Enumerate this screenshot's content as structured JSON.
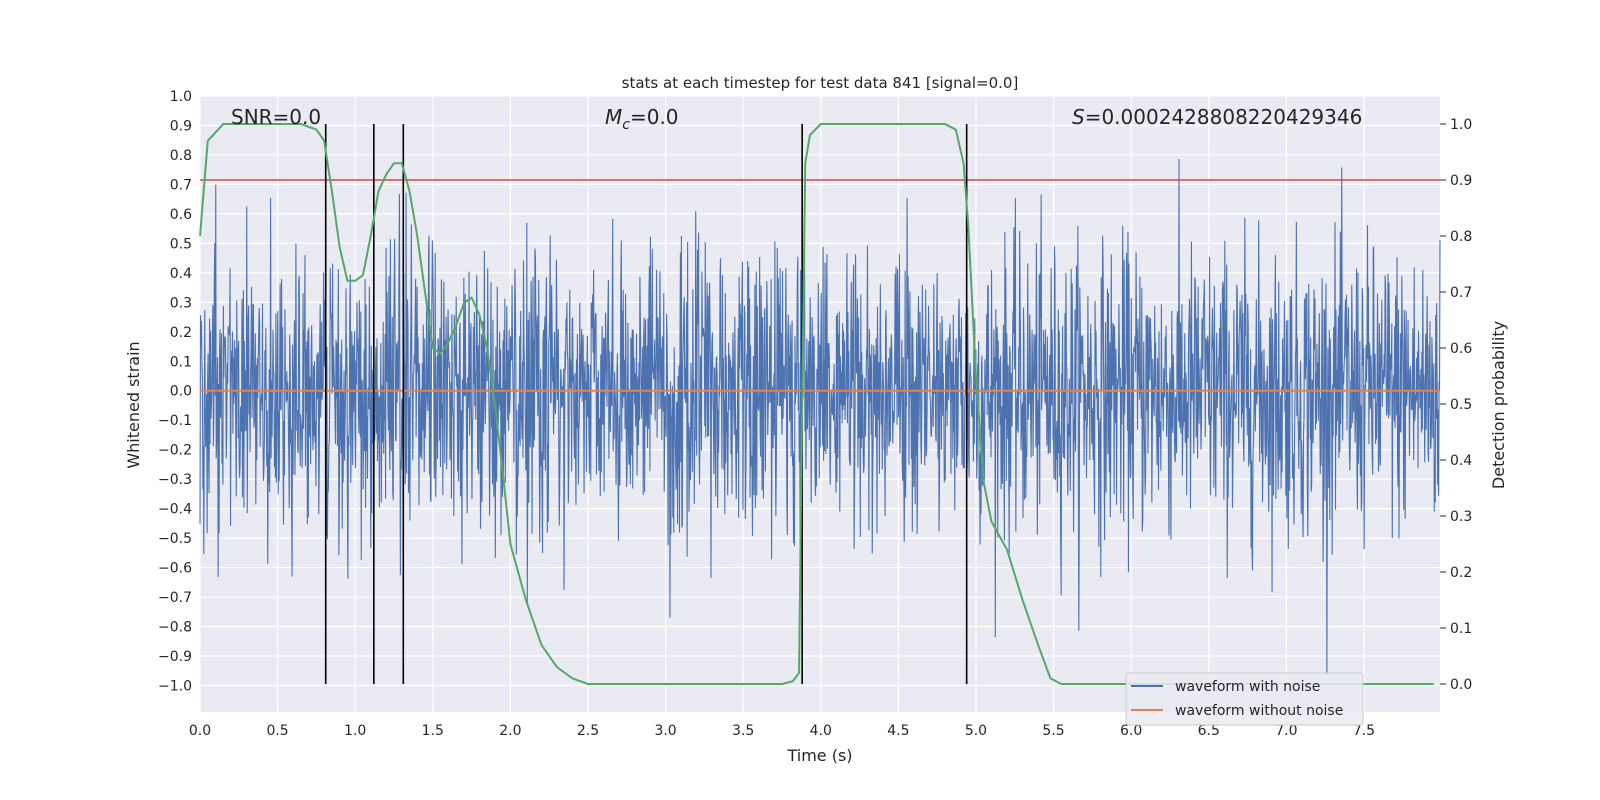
{
  "chart_data": {
    "type": "line",
    "title": "stats at each timestep for test data 841 [signal=0.0]",
    "xlabel": "Time (s)",
    "ylabel": "Whitened strain",
    "y2label": "Detection probability",
    "xlim": [
      0.0,
      7.99
    ],
    "ylim": [
      -1.09,
      1.0
    ],
    "y2lim": [
      -0.05,
      1.05
    ],
    "xticks": [
      "0.0",
      "0.5",
      "1.0",
      "1.5",
      "2.0",
      "2.5",
      "3.0",
      "3.5",
      "4.0",
      "4.5",
      "5.0",
      "5.5",
      "6.0",
      "6.5",
      "7.0",
      "7.5"
    ],
    "yticks": [
      "1.0",
      "0.9",
      "0.8",
      "0.7",
      "0.6",
      "0.5",
      "0.4",
      "0.3",
      "0.2",
      "0.1",
      "0.0",
      "−0.1",
      "−0.2",
      "−0.3",
      "−0.4",
      "−0.5",
      "−0.6",
      "−0.7",
      "−0.8",
      "−0.9",
      "−1.0"
    ],
    "y2ticks": [
      "1.0",
      "0.9",
      "0.8",
      "0.7",
      "0.6",
      "0.5",
      "0.4",
      "0.3",
      "0.2",
      "0.1",
      "0.0"
    ],
    "grid": true,
    "annotations": {
      "snr": "SNR=0.0",
      "mc": "M",
      "mc_sub": "c",
      "mc_val": "=0.0",
      "s_sym": "S",
      "s_val": "=0.0002428808220429346"
    },
    "legend": {
      "placement": "lower-right",
      "entries": [
        {
          "label": "waveform with noise",
          "color": "#4c72b0"
        },
        {
          "label": "waveform without noise",
          "color": "#dd8452"
        }
      ]
    },
    "series": [
      {
        "name": "waveform with noise",
        "color": "#4c72b0",
        "type": "noise",
        "t_start": 0.0,
        "t_end": 7.99,
        "std": 0.24,
        "max": 0.91,
        "min": -1.0
      },
      {
        "name": "waveform without noise",
        "color": "#dd8452",
        "type": "constant",
        "value": 0.0
      },
      {
        "color": "#55a868",
        "axis": "right",
        "x": [
          0.0,
          0.05,
          0.15,
          0.3,
          0.5,
          0.65,
          0.75,
          0.8,
          0.85,
          0.9,
          0.95,
          1.0,
          1.05,
          1.1,
          1.15,
          1.2,
          1.25,
          1.3,
          1.35,
          1.4,
          1.45,
          1.5,
          1.55,
          1.6,
          1.65,
          1.7,
          1.75,
          1.8,
          1.85,
          1.9,
          1.95,
          2.0,
          2.1,
          2.2,
          2.3,
          2.4,
          2.5,
          2.6,
          2.8,
          3.0,
          3.2,
          3.4,
          3.6,
          3.75,
          3.82,
          3.86,
          3.88,
          3.9,
          3.93,
          4.0,
          4.5,
          4.8,
          4.87,
          4.92,
          4.95,
          5.0,
          5.05,
          5.1,
          5.2,
          5.3,
          5.4,
          5.48,
          5.55,
          5.8,
          6.0,
          6.5,
          7.0,
          7.5,
          7.95
        ],
        "y": [
          0.8,
          0.97,
          1.0,
          1.0,
          1.0,
          1.0,
          0.99,
          0.97,
          0.88,
          0.78,
          0.72,
          0.72,
          0.73,
          0.8,
          0.88,
          0.91,
          0.93,
          0.93,
          0.88,
          0.8,
          0.7,
          0.6,
          0.59,
          0.61,
          0.64,
          0.68,
          0.69,
          0.66,
          0.6,
          0.5,
          0.38,
          0.25,
          0.15,
          0.07,
          0.03,
          0.01,
          0.0,
          0.0,
          0.0,
          0.0,
          0.0,
          0.0,
          0.0,
          0.0,
          0.005,
          0.02,
          0.5,
          0.93,
          0.98,
          1.0,
          1.0,
          1.0,
          0.99,
          0.93,
          0.82,
          0.55,
          0.36,
          0.29,
          0.24,
          0.15,
          0.07,
          0.01,
          0.0,
          0.0,
          0.0,
          0.0,
          0.0,
          0.0,
          0.0
        ]
      },
      {
        "name": "threshold",
        "color": "#c44e52",
        "axis": "right",
        "type": "constant",
        "value": 0.9
      }
    ],
    "vlines": [
      0.81,
      1.12,
      1.31,
      3.88,
      4.94
    ]
  }
}
